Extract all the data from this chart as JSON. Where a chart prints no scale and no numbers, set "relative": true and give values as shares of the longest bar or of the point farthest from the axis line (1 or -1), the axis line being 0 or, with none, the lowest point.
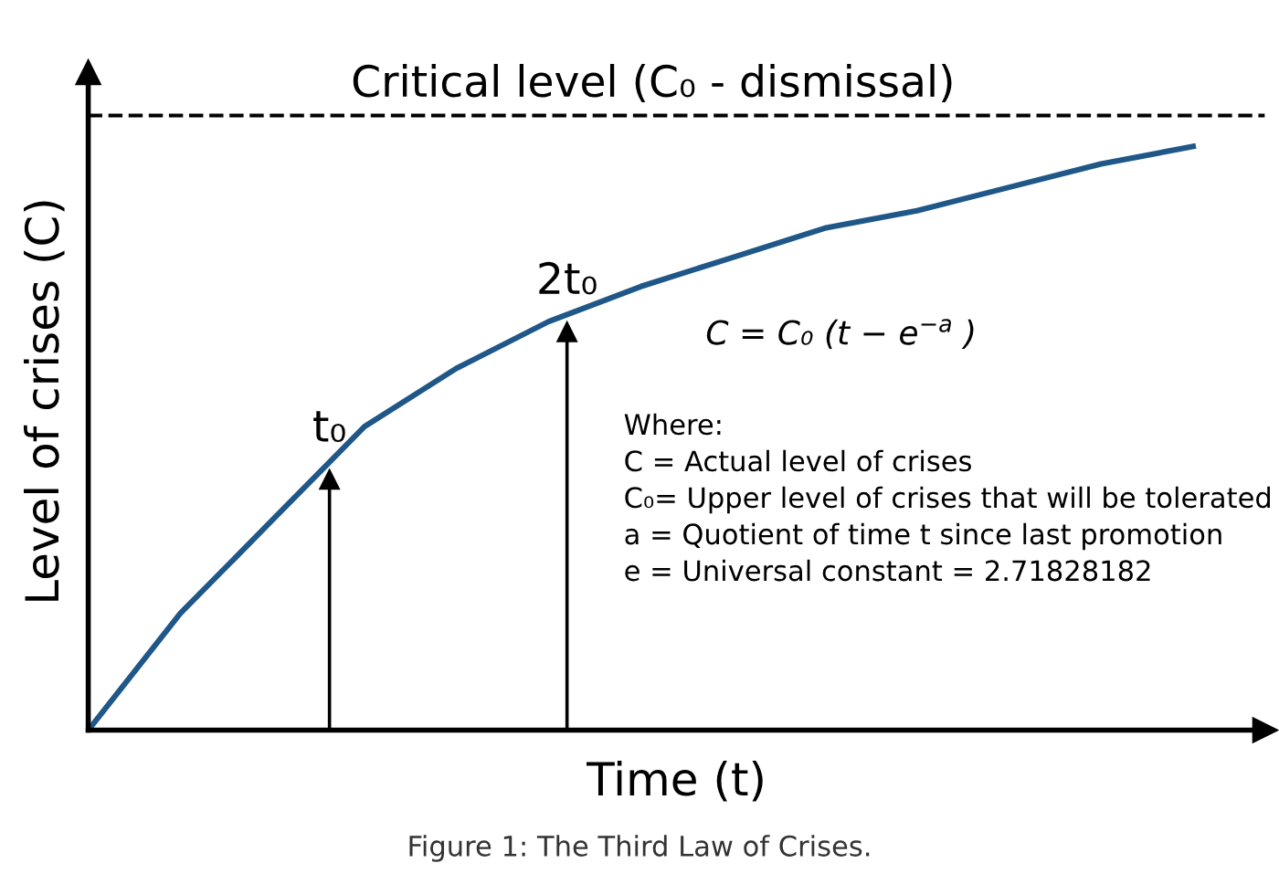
{
  "chart_data": {
    "type": "line",
    "relative": true,
    "xlabel": "Time (t)",
    "ylabel": "Level of crises (C)",
    "categories": [
      null,
      null,
      null,
      null,
      null,
      null,
      null,
      null,
      null,
      null,
      null,
      null,
      null
    ],
    "series": [
      {
        "color": "#1f5788",
        "values": [
          0,
          0.2,
          0.36,
          0.52,
          0.62,
          0.7,
          0.76,
          0.81,
          0.86,
          0.89,
          0.93,
          0.97,
          1
        ]
      }
    ],
    "ref_lines": [
      {
        "axis": "y",
        "value": 1.053,
        "label": "Critical level (C₀ - dismissal)",
        "color": "#000000",
        "line_style": "dashed"
      }
    ],
    "annotations": [
      "t₀",
      "2t₀",
      "C = C₀ (t − e$^{−a}$ )",
      "Where:\nC = Actual level of crises\nC₀= Upper level of crises that will be tolerated\na = Quotient of time t since last promotion\ne = Universal constant = 2.71828182",
      "Figure 1: The Third Law of Crises."
    ],
    "legend": false,
    "marker": "none",
    "line_style": "solid"
  }
}
